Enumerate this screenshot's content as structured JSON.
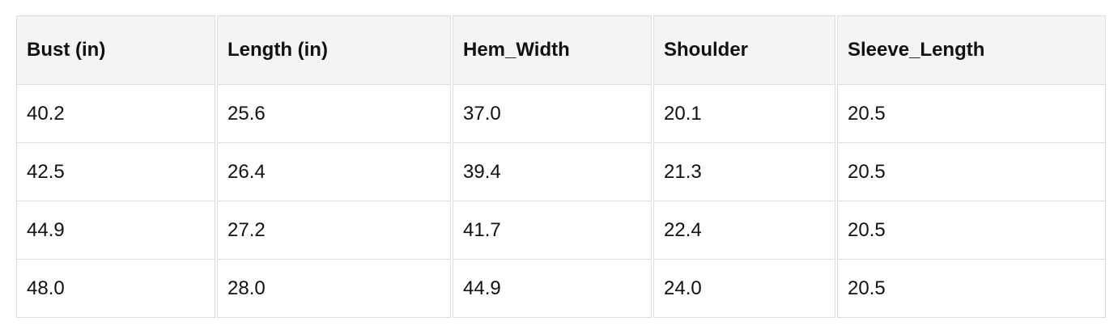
{
  "table": {
    "headers": [
      "Bust (in)",
      "Length (in)",
      "Hem_Width",
      "Shoulder",
      "Sleeve_Length"
    ],
    "rows": [
      [
        "40.2",
        "25.6",
        "37.0",
        "20.1",
        "20.5"
      ],
      [
        "42.5",
        "26.4",
        "39.4",
        "21.3",
        "20.5"
      ],
      [
        "44.9",
        "27.2",
        "41.7",
        "22.4",
        "20.5"
      ],
      [
        "48.0",
        "28.0",
        "44.9",
        "24.0",
        "20.5"
      ]
    ]
  }
}
